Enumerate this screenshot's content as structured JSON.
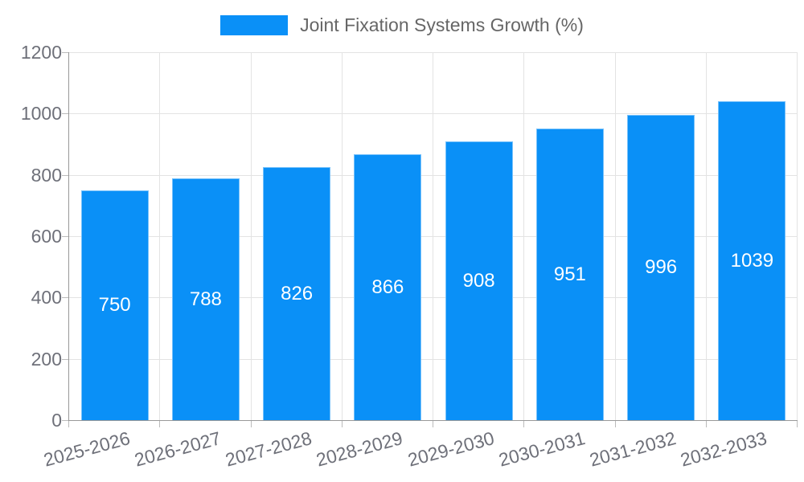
{
  "legend": {
    "label": "Joint Fixation Systems Growth (%)"
  },
  "colors": {
    "bar": "#0a90f7",
    "grid": "#e3e3e3",
    "axis": "#999999",
    "tick_text": "#6e7079",
    "legend_text": "#666666",
    "value_text": "#ffffff"
  },
  "chart_data": {
    "type": "bar",
    "title": "",
    "xlabel": "",
    "ylabel": "",
    "categories": [
      "2025-2026",
      "2026-2027",
      "2027-2028",
      "2028-2029",
      "2029-2030",
      "2030-2031",
      "2031-2032",
      "2032-2033"
    ],
    "series": [
      {
        "name": "Joint Fixation Systems Growth (%)",
        "values": [
          750,
          788,
          826,
          866,
          908,
          951,
          996,
          1039
        ]
      }
    ],
    "ylim": [
      0,
      1200
    ],
    "ytick_step": 200,
    "ytick_labels": [
      "0",
      "200",
      "400",
      "600",
      "800",
      "1000",
      "1200"
    ],
    "grid": true,
    "legend_position": "top-center",
    "value_label_position": "inside-middle",
    "x_label_rotation_deg": -15
  }
}
